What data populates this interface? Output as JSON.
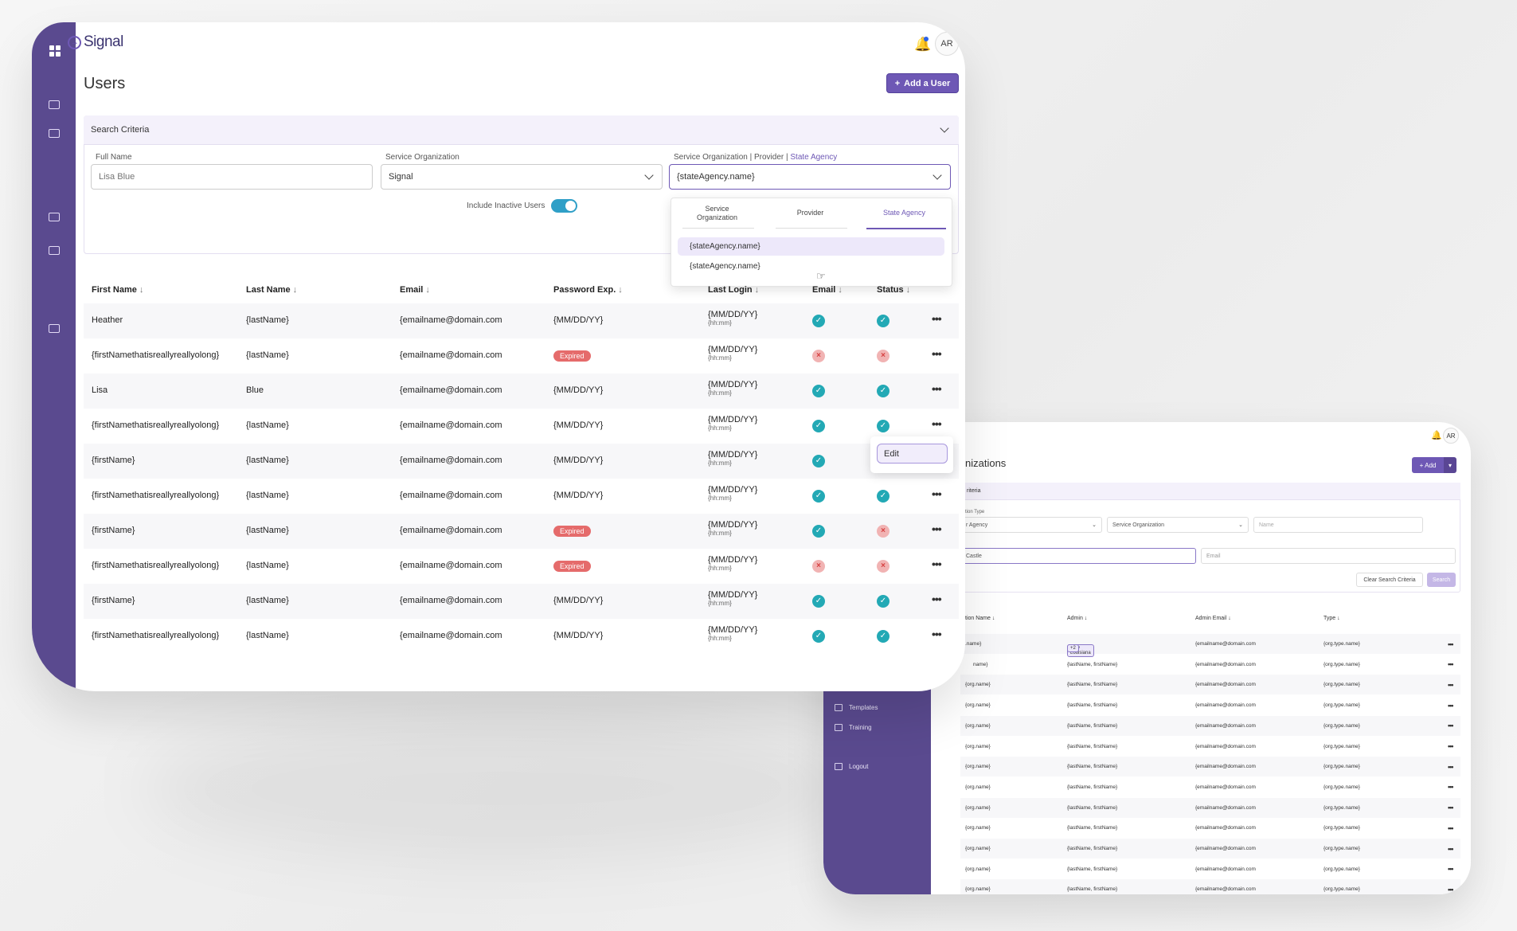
{
  "front": {
    "brand": "Signal",
    "avatar_initials": "AR",
    "page_title": "Users",
    "add_button_label": "Add a User",
    "search_criteria_label": "Search Criteria",
    "fields": {
      "full_name_label": "Full Name",
      "full_name_placeholder": "Lisa Blue",
      "service_org_label": "Service Organization",
      "service_org_value": "Signal",
      "type_label_prefix": "Service Organization | Provider | ",
      "type_label_highlight": "State Agency",
      "type_value": "{stateAgency.name}",
      "include_inactive_label": "Include Inactive Users"
    },
    "dropdown": {
      "tabs": [
        "Service\nOrganization",
        "Provider",
        "State Agency"
      ],
      "items": [
        "{stateAgency.name}",
        "{stateAgency.name}"
      ]
    },
    "columns": [
      "First Name",
      "Last Name",
      "Email",
      "Password Exp.",
      "Last Login",
      "Email",
      "Status"
    ],
    "rows": [
      {
        "first": "Heather",
        "last": "{lastName}",
        "email": "{emailname@domain.com",
        "pwd": "{MM/DD/YY}",
        "login": "{MM/DD/YY}",
        "time": "{hh:mm}",
        "email_ok": true,
        "status_ok": true
      },
      {
        "first": "{firstNamethatisreallyreallyolong}",
        "last": "{lastName}",
        "email": "{emailname@domain.com",
        "pwd": "Expired",
        "login": "{MM/DD/YY}",
        "time": "{hh:mm}",
        "email_ok": false,
        "status_ok": false
      },
      {
        "first": "Lisa",
        "last": "Blue",
        "email": "{emailname@domain.com",
        "pwd": "{MM/DD/YY}",
        "login": "{MM/DD/YY}",
        "time": "{hh:mm}",
        "email_ok": true,
        "status_ok": true
      },
      {
        "first": "{firstNamethatisreallyreallyolong}",
        "last": "{lastName}",
        "email": "{emailname@domain.com",
        "pwd": "{MM/DD/YY}",
        "login": "{MM/DD/YY}",
        "time": "{hh:mm}",
        "email_ok": true,
        "status_ok": true
      },
      {
        "first": "{firstName}",
        "last": "{lastName}",
        "email": "{emailname@domain.com",
        "pwd": "{MM/DD/YY}",
        "login": "{MM/DD/YY}",
        "time": "{hh:mm}",
        "email_ok": true,
        "status_ok": null
      },
      {
        "first": "{firstNamethatisreallyreallyolong}",
        "last": "{lastName}",
        "email": "{emailname@domain.com",
        "pwd": "{MM/DD/YY}",
        "login": "{MM/DD/YY}",
        "time": "{hh:mm}",
        "email_ok": true,
        "status_ok": true
      },
      {
        "first": "{firstName}",
        "last": "{lastName}",
        "email": "{emailname@domain.com",
        "pwd": "Expired",
        "login": "{MM/DD/YY}",
        "time": "{hh:mm}",
        "email_ok": true,
        "status_ok": false
      },
      {
        "first": "{firstNamethatisreallyreallyolong}",
        "last": "{lastName}",
        "email": "{emailname@domain.com",
        "pwd": "Expired",
        "login": "{MM/DD/YY}",
        "time": "{hh:mm}",
        "email_ok": false,
        "status_ok": false
      },
      {
        "first": "{firstName}",
        "last": "{lastName}",
        "email": "{emailname@domain.com",
        "pwd": "{MM/DD/YY}",
        "login": "{MM/DD/YY}",
        "time": "{hh:mm}",
        "email_ok": true,
        "status_ok": true
      },
      {
        "first": "{firstNamethatisreallyreallyolong}",
        "last": "{lastName}",
        "email": "{emailname@domain.com",
        "pwd": "{MM/DD/YY}",
        "login": "{MM/DD/YY}",
        "time": "{hh:mm}",
        "email_ok": true,
        "status_ok": true
      }
    ],
    "row_menu_edit": "Edit"
  },
  "back": {
    "avatar_initials": "AR",
    "page_title_fragment": "nizations",
    "add_label": "+ Add",
    "criteria_fragment": "riteria",
    "type_label_fragment": "tion Type",
    "type_value_fragment": "r Agency",
    "service_org_value": "Service Organization",
    "name_placeholder": "Name",
    "city_value_fragment": "Castle",
    "email_placeholder": "Email",
    "clear_label": "Clear Search Criteria",
    "search_label": "Search",
    "columns": [
      "tion Name",
      "Admin",
      "Admin Email",
      "Type"
    ],
    "first_row": {
      "name": ".name}",
      "chip": "Amy Louisiana",
      "more": "+2",
      "email": "{emailname@domain.com",
      "type": "{org.type.name}"
    },
    "row_name_fragment": "name}",
    "row_name": "{org.name}",
    "row_admin": "{lastName, firstName}",
    "row_email": "{emailname@domain.com",
    "row_type": "{org.type.name}",
    "nav": [
      "Templates",
      "Training",
      "Logout"
    ]
  }
}
